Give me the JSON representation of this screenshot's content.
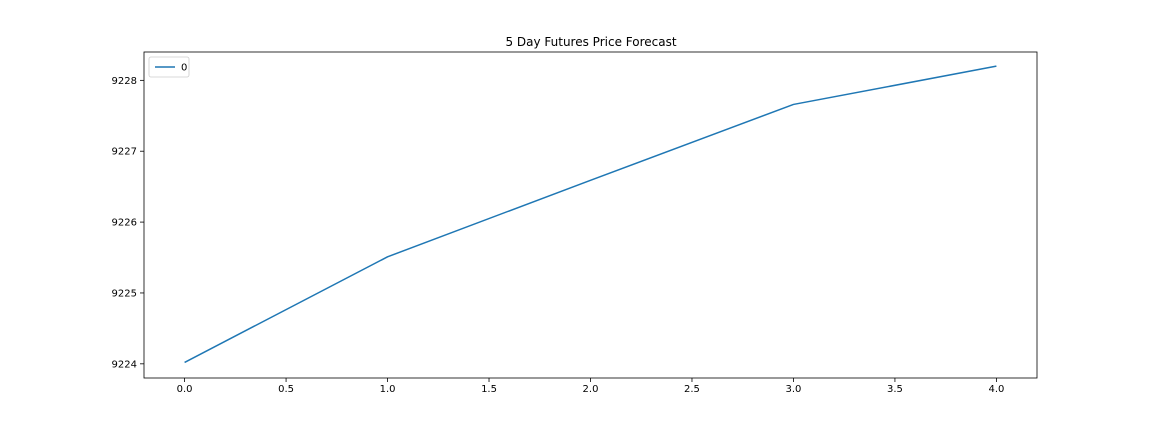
{
  "chart_data": {
    "type": "line",
    "title": "5 Day Futures Price Forecast",
    "xlabel": "",
    "ylabel": "",
    "x": [
      0,
      1,
      2,
      3,
      4
    ],
    "series": [
      {
        "name": "0",
        "color": "#1f77b4",
        "values": [
          9224.02,
          9225.51,
          9226.59,
          9227.66,
          9228.2
        ]
      }
    ],
    "xlim": [
      -0.2,
      4.2
    ],
    "ylim": [
      9223.8,
      9228.4
    ],
    "x_ticks": [
      0.0,
      0.5,
      1.0,
      1.5,
      2.0,
      2.5,
      3.0,
      3.5,
      4.0
    ],
    "x_tick_labels": [
      "0.0",
      "0.5",
      "1.0",
      "1.5",
      "2.0",
      "2.5",
      "3.0",
      "3.5",
      "4.0"
    ],
    "y_ticks": [
      9224,
      9225,
      9226,
      9227,
      9228
    ],
    "y_tick_labels": [
      "9224",
      "9225",
      "9226",
      "9227",
      "9228"
    ],
    "grid": false,
    "legend_position": "top-left"
  }
}
